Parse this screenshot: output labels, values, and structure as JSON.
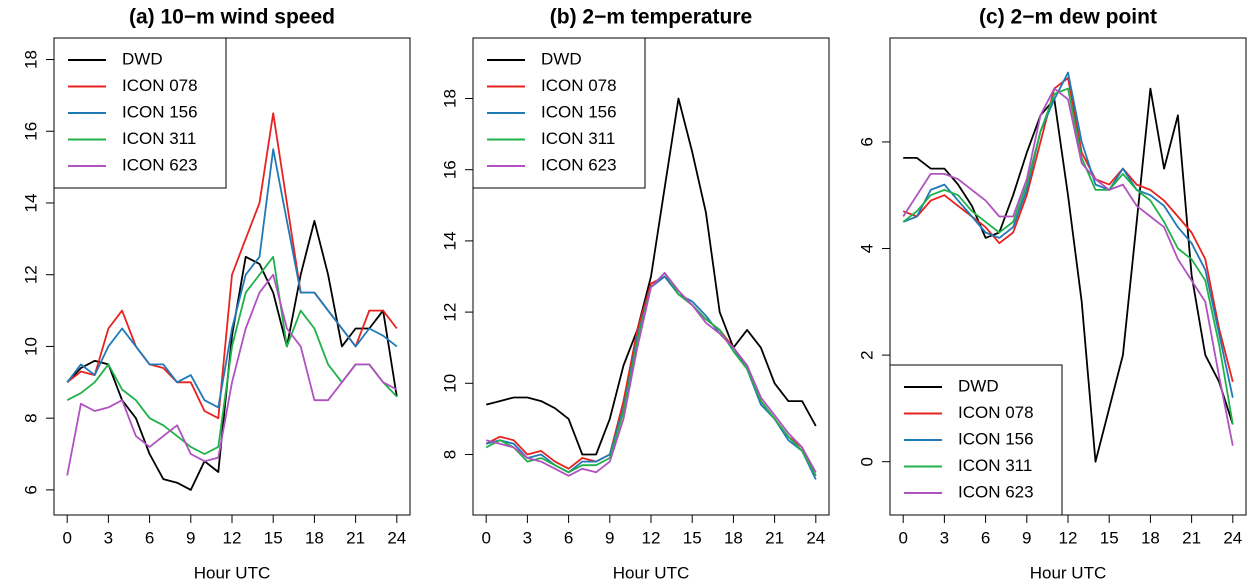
{
  "chart_data": [
    {
      "type": "line",
      "title": "(a) 10−m wind speed",
      "xlabel": "Hour UTC",
      "x": [
        0,
        1,
        2,
        3,
        4,
        5,
        6,
        7,
        8,
        9,
        10,
        11,
        12,
        13,
        14,
        15,
        16,
        17,
        18,
        19,
        20,
        21,
        22,
        23,
        24
      ],
      "xlim": [
        -0.96,
        24.96
      ],
      "xticks": [
        0,
        3,
        6,
        9,
        12,
        15,
        18,
        21,
        24
      ],
      "ylim": [
        5.3,
        18.6
      ],
      "yticks": [
        6,
        8,
        10,
        12,
        14,
        16,
        18
      ],
      "legend": "topleft",
      "series": [
        {
          "name": "DWD",
          "color": "#000000",
          "values": [
            9.0,
            9.4,
            9.6,
            9.5,
            8.5,
            8.0,
            7.0,
            6.3,
            6.2,
            6.0,
            6.8,
            6.5,
            10.3,
            12.5,
            12.3,
            11.5,
            10.0,
            12.0,
            13.5,
            12.0,
            10.0,
            10.5,
            10.5,
            11.0,
            8.6
          ]
        },
        {
          "name": "ICON 078",
          "color": "#e8221f",
          "values": [
            9.0,
            9.3,
            9.2,
            10.5,
            11.0,
            10.0,
            9.5,
            9.4,
            9.0,
            9.0,
            8.2,
            8.0,
            12.0,
            13.0,
            14.0,
            16.5,
            14.0,
            11.5,
            11.5,
            11.0,
            10.5,
            10.0,
            11.0,
            11.0,
            10.5
          ]
        },
        {
          "name": "ICON 156",
          "color": "#1f7ab8",
          "values": [
            9.0,
            9.5,
            9.2,
            10.0,
            10.5,
            10.0,
            9.5,
            9.5,
            9.0,
            9.2,
            8.5,
            8.3,
            10.5,
            12.0,
            12.5,
            15.5,
            13.5,
            11.5,
            11.5,
            11.0,
            10.5,
            10.0,
            10.5,
            10.3,
            10.0
          ]
        },
        {
          "name": "ICON 311",
          "color": "#21b14a",
          "values": [
            8.5,
            8.7,
            9.0,
            9.5,
            8.8,
            8.5,
            8.0,
            7.8,
            7.5,
            7.2,
            7.0,
            7.2,
            10.0,
            11.5,
            12.0,
            12.5,
            10.0,
            11.0,
            10.5,
            9.5,
            9.0,
            9.5,
            9.5,
            9.0,
            8.6
          ]
        },
        {
          "name": "ICON 623",
          "color": "#b052c0",
          "values": [
            6.4,
            8.4,
            8.2,
            8.3,
            8.5,
            7.5,
            7.2,
            7.5,
            7.8,
            7.0,
            6.8,
            6.9,
            9.0,
            10.5,
            11.5,
            12.0,
            10.5,
            10.0,
            8.5,
            8.5,
            9.0,
            9.5,
            9.5,
            9.0,
            8.8
          ]
        }
      ]
    },
    {
      "type": "line",
      "title": "(b) 2−m temperature",
      "xlabel": "Hour UTC",
      "x": [
        0,
        1,
        2,
        3,
        4,
        5,
        6,
        7,
        8,
        9,
        10,
        11,
        12,
        13,
        14,
        15,
        16,
        17,
        18,
        19,
        20,
        21,
        22,
        23,
        24
      ],
      "xlim": [
        -0.96,
        24.96
      ],
      "xticks": [
        0,
        3,
        6,
        9,
        12,
        15,
        18,
        21,
        24
      ],
      "ylim": [
        6.3,
        19.7
      ],
      "yticks": [
        8,
        10,
        12,
        14,
        16,
        18
      ],
      "legend": "topleft",
      "series": [
        {
          "name": "DWD",
          "color": "#000000",
          "values": [
            9.4,
            9.5,
            9.6,
            9.6,
            9.5,
            9.3,
            9.0,
            8.0,
            8.0,
            9.0,
            10.5,
            11.5,
            13.0,
            15.5,
            18.0,
            16.5,
            14.8,
            12.0,
            11.0,
            11.5,
            11.0,
            10.0,
            9.5,
            9.5,
            8.8
          ]
        },
        {
          "name": "ICON 078",
          "color": "#e8221f",
          "values": [
            8.3,
            8.5,
            8.4,
            8.0,
            8.1,
            7.8,
            7.6,
            7.9,
            7.8,
            8.0,
            9.5,
            11.5,
            12.8,
            13.0,
            12.5,
            12.2,
            11.8,
            11.5,
            11.0,
            10.5,
            9.5,
            9.0,
            8.5,
            8.2,
            7.4
          ]
        },
        {
          "name": "ICON 156",
          "color": "#1f7ab8",
          "values": [
            8.3,
            8.4,
            8.3,
            7.9,
            8.0,
            7.7,
            7.5,
            7.8,
            7.8,
            8.0,
            9.3,
            11.3,
            12.7,
            13.0,
            12.5,
            12.3,
            11.9,
            11.4,
            11.0,
            10.4,
            9.4,
            9.0,
            8.4,
            8.1,
            7.3
          ]
        },
        {
          "name": "ICON 311",
          "color": "#21b14a",
          "values": [
            8.2,
            8.4,
            8.2,
            7.8,
            7.9,
            7.7,
            7.5,
            7.7,
            7.7,
            7.9,
            9.2,
            11.2,
            12.7,
            13.1,
            12.5,
            12.2,
            11.8,
            11.5,
            10.9,
            10.4,
            9.5,
            9.0,
            8.5,
            8.1,
            7.4
          ]
        },
        {
          "name": "ICON 623",
          "color": "#b052c0",
          "values": [
            8.4,
            8.3,
            8.2,
            7.9,
            7.8,
            7.6,
            7.4,
            7.6,
            7.5,
            7.8,
            9.0,
            11.0,
            12.7,
            13.1,
            12.6,
            12.2,
            11.7,
            11.4,
            11.0,
            10.5,
            9.6,
            9.1,
            8.6,
            8.2,
            7.5
          ]
        }
      ]
    },
    {
      "type": "line",
      "title": "(c) 2−m dew point",
      "xlabel": "Hour UTC",
      "x": [
        0,
        1,
        2,
        3,
        4,
        5,
        6,
        7,
        8,
        9,
        10,
        11,
        12,
        13,
        14,
        15,
        16,
        17,
        18,
        19,
        20,
        21,
        22,
        23,
        24
      ],
      "xlim": [
        -0.96,
        24.96
      ],
      "xticks": [
        0,
        3,
        6,
        9,
        12,
        15,
        18,
        21,
        24
      ],
      "ylim": [
        -1.0,
        7.95
      ],
      "yticks": [
        0,
        2,
        4,
        6
      ],
      "legend": "bottomleft",
      "series": [
        {
          "name": "DWD",
          "color": "#000000",
          "values": [
            5.7,
            5.7,
            5.5,
            5.5,
            5.2,
            4.8,
            4.2,
            4.3,
            5.0,
            5.8,
            6.5,
            6.8,
            5.0,
            3.0,
            0.0,
            1.0,
            2.0,
            4.5,
            7.0,
            5.5,
            6.5,
            3.5,
            2.0,
            1.5,
            0.7
          ]
        },
        {
          "name": "ICON 078",
          "color": "#e8221f",
          "values": [
            4.7,
            4.6,
            4.9,
            5.0,
            4.8,
            4.6,
            4.4,
            4.1,
            4.3,
            5.0,
            6.0,
            7.0,
            7.2,
            5.8,
            5.3,
            5.2,
            5.5,
            5.2,
            5.1,
            4.9,
            4.6,
            4.3,
            3.8,
            2.5,
            1.5
          ]
        },
        {
          "name": "ICON 156",
          "color": "#1f7ab8",
          "values": [
            4.5,
            4.6,
            5.1,
            5.2,
            4.9,
            4.6,
            4.3,
            4.2,
            4.4,
            5.1,
            6.2,
            6.8,
            7.3,
            6.0,
            5.2,
            5.1,
            5.5,
            5.1,
            5.0,
            4.8,
            4.4,
            4.1,
            3.6,
            2.4,
            1.2
          ]
        },
        {
          "name": "ICON 311",
          "color": "#21b14a",
          "values": [
            4.5,
            4.7,
            5.0,
            5.1,
            5.0,
            4.7,
            4.5,
            4.3,
            4.5,
            5.2,
            6.2,
            6.9,
            7.0,
            5.7,
            5.1,
            5.1,
            5.4,
            5.1,
            4.9,
            4.5,
            4.0,
            3.8,
            3.4,
            2.2,
            0.7
          ]
        },
        {
          "name": "ICON 623",
          "color": "#b052c0",
          "values": [
            4.6,
            5.0,
            5.4,
            5.4,
            5.3,
            5.1,
            4.9,
            4.6,
            4.6,
            5.3,
            6.5,
            7.0,
            6.8,
            5.6,
            5.3,
            5.1,
            5.2,
            4.8,
            4.6,
            4.4,
            3.8,
            3.4,
            3.0,
            1.6,
            0.3
          ]
        }
      ]
    }
  ]
}
